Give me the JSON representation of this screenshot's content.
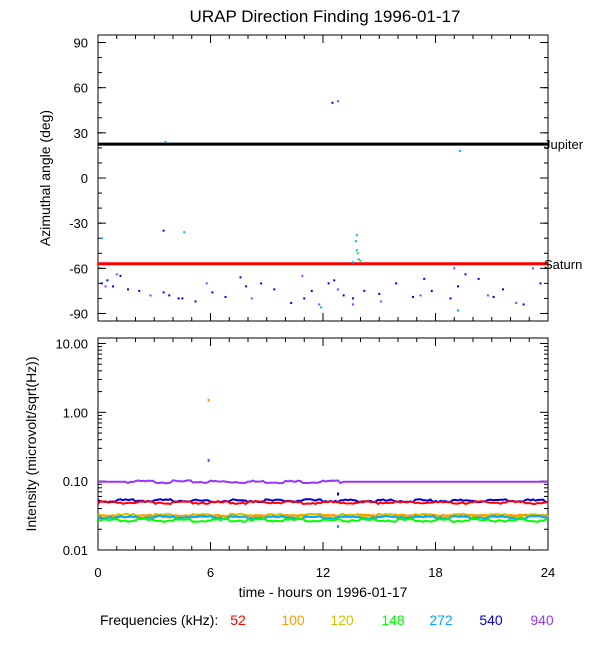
{
  "title": "URAP Direction Finding  1996-01-17",
  "colors": {
    "52": "#ff0000",
    "100": "#ff9900",
    "120": "#d4bf00",
    "148": "#00ff00",
    "272": "#00aaff",
    "540": "#0000dd",
    "940": "#9933ff",
    "jupiter_line": "#000000",
    "saturn_line": "#ff0000"
  },
  "chart_data": [
    {
      "type": "scatter",
      "ylabel": "Azimuthal angle (deg)",
      "ylim": [
        -95,
        95
      ],
      "xlim": [
        0,
        24
      ],
      "yticks": [
        "90",
        "60",
        "30",
        "0",
        "-30",
        "-60",
        "-90"
      ],
      "reference_lines": [
        {
          "name": "Jupiter",
          "y": 22.5
        },
        {
          "name": "Saturn",
          "y": -57
        }
      ],
      "series": [
        {
          "freq": "540",
          "points": [
            [
              0.2,
              -70
            ],
            [
              0.5,
              -68
            ],
            [
              0.8,
              -72
            ],
            [
              1.2,
              -65
            ],
            [
              1.6,
              -74
            ],
            [
              2.2,
              -75
            ],
            [
              3.5,
              -76
            ],
            [
              3.8,
              -78
            ],
            [
              4.3,
              -80
            ],
            [
              5.2,
              -82
            ],
            [
              6.1,
              -76
            ],
            [
              6.8,
              -79
            ],
            [
              7.6,
              -66
            ],
            [
              7.9,
              -72
            ],
            [
              8.7,
              -70
            ],
            [
              9.4,
              -74
            ],
            [
              10.3,
              -83
            ],
            [
              11.0,
              -80
            ],
            [
              11.4,
              -75
            ],
            [
              12.3,
              -70
            ],
            [
              12.6,
              -68
            ],
            [
              13.1,
              -78
            ],
            [
              13.6,
              -80
            ],
            [
              14.2,
              -75
            ],
            [
              15.0,
              -77
            ],
            [
              15.9,
              -70
            ],
            [
              16.8,
              -79
            ],
            [
              17.4,
              -67
            ],
            [
              17.8,
              -75
            ],
            [
              18.8,
              -80
            ],
            [
              19.2,
              -72
            ],
            [
              19.6,
              -64
            ],
            [
              20.3,
              -67
            ],
            [
              21.1,
              -79
            ],
            [
              21.6,
              -74
            ],
            [
              22.7,
              -84
            ],
            [
              23.6,
              -70
            ],
            [
              3.5,
              -35
            ],
            [
              4.5,
              -80
            ],
            [
              12.5,
              50
            ]
          ]
        },
        {
          "freq": "940",
          "points": [
            [
              0.4,
              -72
            ],
            [
              1.0,
              -64
            ],
            [
              2.8,
              -78
            ],
            [
              5.8,
              -70
            ],
            [
              8.2,
              -80
            ],
            [
              10.9,
              -65
            ],
            [
              11.8,
              -84
            ],
            [
              12.8,
              -74
            ],
            [
              13.6,
              -84
            ],
            [
              15.1,
              -82
            ],
            [
              17.2,
              -78
            ],
            [
              19.0,
              -60
            ],
            [
              20.8,
              -78
            ],
            [
              22.3,
              -83
            ],
            [
              23.2,
              -60
            ],
            [
              12.8,
              51
            ]
          ]
        },
        {
          "freq": "272",
          "points": [
            [
              3.6,
              24
            ],
            [
              4.6,
              -36
            ],
            [
              13.8,
              -38
            ],
            [
              13.75,
              -42
            ],
            [
              13.8,
              -48
            ],
            [
              13.9,
              -54
            ],
            [
              13.6,
              -56
            ],
            [
              19.3,
              18
            ],
            [
              19.2,
              -88
            ],
            [
              11.9,
              -86
            ],
            [
              0.2,
              -40
            ]
          ]
        },
        {
          "freq": "148",
          "points": [
            [
              13.85,
              -50
            ],
            [
              14.0,
              -55
            ]
          ]
        }
      ]
    },
    {
      "type": "line",
      "ylabel": "Intensity (microvolt/sqrt(Hz))",
      "xlabel": "time - hours on 1996-01-17",
      "y_scale": "log",
      "ylim": [
        0.01,
        12
      ],
      "xlim": [
        0,
        24
      ],
      "yticks": [
        {
          "value": 10,
          "label": "10.00"
        },
        {
          "value": 1,
          "label": "1.00"
        },
        {
          "value": 0.1,
          "label": "0.10"
        },
        {
          "value": 0.01,
          "label": "0.01"
        }
      ],
      "xticks": [
        "0",
        "6",
        "12",
        "18",
        "24"
      ],
      "series": [
        {
          "freq": "940",
          "level": 0.098
        },
        {
          "freq": "540",
          "level": 0.052
        },
        {
          "freq": "52",
          "level": 0.049
        },
        {
          "freq": "120",
          "level": 0.032
        },
        {
          "freq": "100",
          "level": 0.031
        },
        {
          "freq": "272",
          "level": 0.03
        },
        {
          "freq": "148",
          "level": 0.027
        }
      ],
      "spikes": [
        {
          "freq": "100",
          "x": 5.9,
          "y": 1.5
        },
        {
          "freq": "940",
          "x": 5.9,
          "y": 0.2
        },
        {
          "freq": "540",
          "x": 12.8,
          "y": 0.065
        },
        {
          "freq": "272",
          "x": 12.8,
          "y": 0.022
        }
      ]
    }
  ],
  "legend": {
    "label": "Frequencies (kHz):",
    "items": [
      "52",
      "100",
      "120",
      "148",
      "272",
      "540",
      "940"
    ]
  }
}
